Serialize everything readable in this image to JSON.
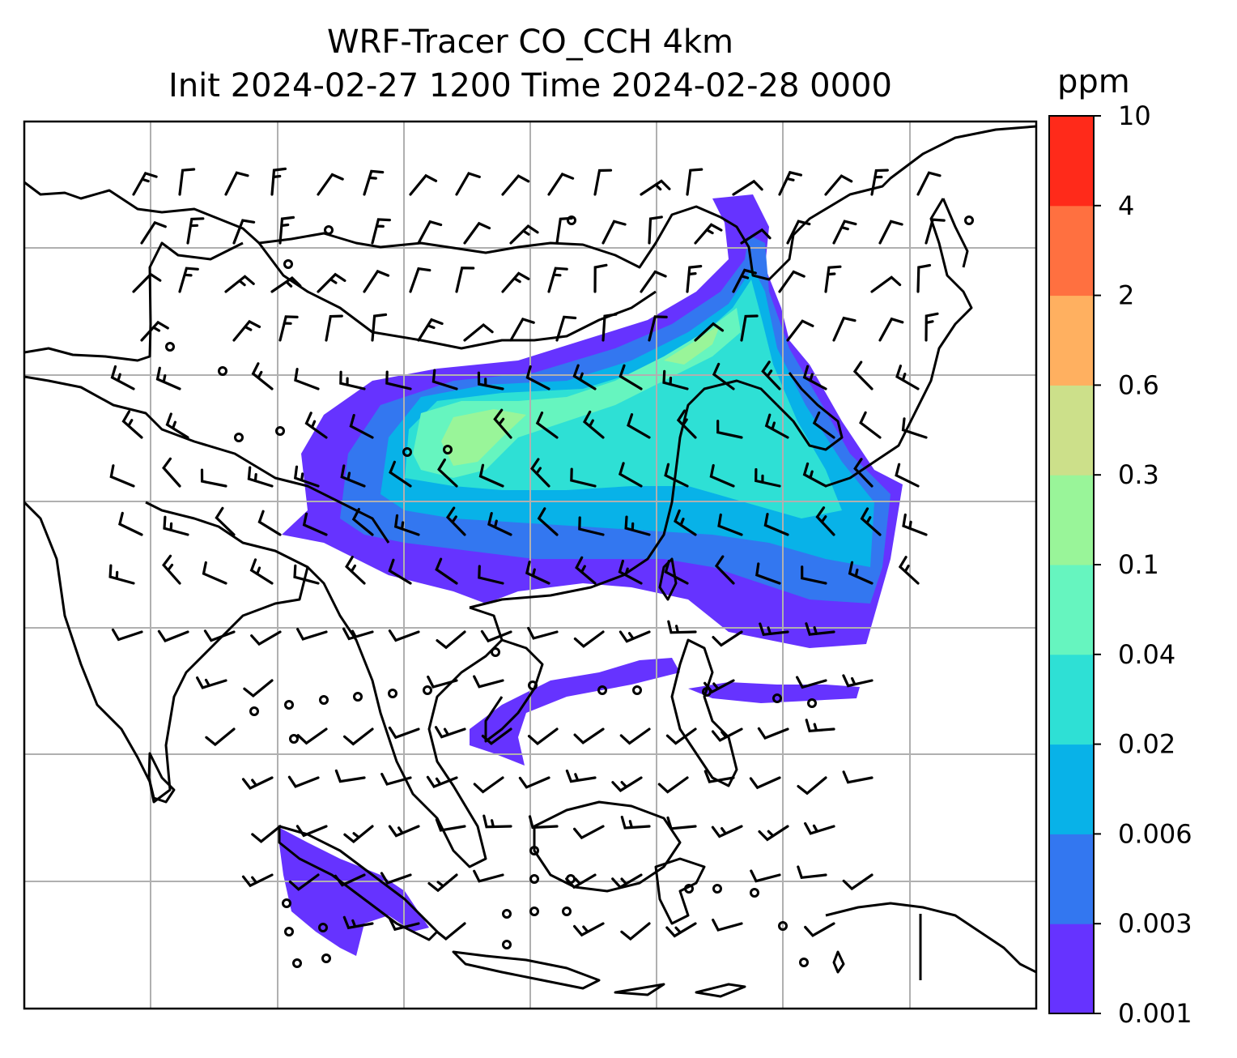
{
  "title": {
    "line1": "WRF-Tracer CO_CCH 4km",
    "line2": "Init 2024-02-27 1200 Time 2024-02-28 0000"
  },
  "colorbar": {
    "unit": "ppm",
    "levels": [
      "0.001",
      "0.003",
      "0.006",
      "0.02",
      "0.04",
      "0.1",
      "0.3",
      "0.6",
      "2",
      "4",
      "10"
    ],
    "colors": [
      "#6633ff",
      "#3377f0",
      "#08b2e8",
      "#2ee0d5",
      "#66f5bf",
      "#99f599",
      "#cce08a",
      "#ffb060",
      "#ff7040",
      "#ff2a1a"
    ]
  },
  "map": {
    "gridlines": true,
    "coastline_color": "#000000",
    "gridline_color": "#b0b0b0",
    "plume_colors": [
      "#6633ff",
      "#3377f0",
      "#08b2e8",
      "#2ee0d5",
      "#66f5bf",
      "#99f599"
    ],
    "wind_barbs": true,
    "calm_circles": true
  }
}
